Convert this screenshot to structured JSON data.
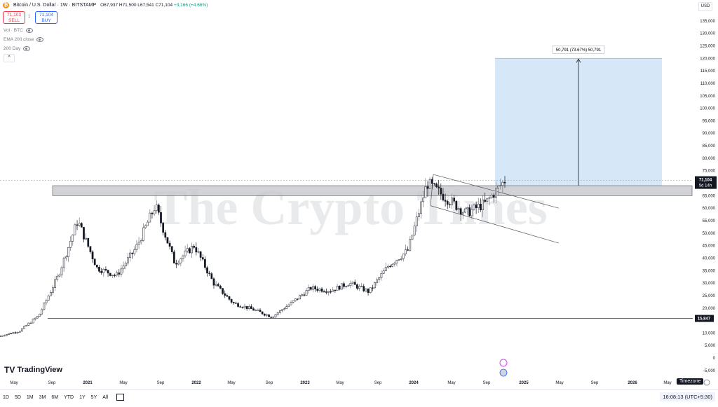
{
  "header": {
    "title": "Bitcoin / U.S. Dollar · 1W · BITSTAMP",
    "open": "O67,937",
    "high": "H71,500",
    "low": "L67,541",
    "close": "C71,104",
    "change": "+3,166 (+4.66%)"
  },
  "trade": {
    "sell_price": "71,103",
    "sell_label": "SELL",
    "spread": "1",
    "buy_price": "71,104",
    "buy_label": "BUY"
  },
  "indicators": [
    "Vol · BTC",
    "EMA 200 close",
    "200 Day"
  ],
  "currency": "USD",
  "price_axis": [
    "135,000",
    "130,000",
    "125,000",
    "120,000",
    "115,000",
    "110,000",
    "105,000",
    "100,000",
    "95,000",
    "90,000",
    "85,000",
    "80,000",
    "75,000",
    "70,000",
    "65,000",
    "60,000",
    "55,000",
    "50,000",
    "45,000",
    "40,000",
    "35,000",
    "30,000",
    "25,000",
    "20,000",
    "15,000",
    "10,000",
    "5,000",
    "0",
    "-5,000"
  ],
  "time_axis": [
    "May",
    "Sep",
    "2021",
    "May",
    "Sep",
    "2022",
    "May",
    "Sep",
    "2023",
    "May",
    "Sep",
    "2024",
    "May",
    "Sep",
    "2025",
    "May",
    "Sep",
    "2026",
    "May"
  ],
  "price_tag": {
    "value": "71,104",
    "countdown": "5d 14h"
  },
  "support_tag": "15,847",
  "measure_label": "50,791 (73.67%) 50,791",
  "watermark": "The Crypto Times",
  "logo": "TradingView",
  "timeframes": [
    "1D",
    "5D",
    "1M",
    "3M",
    "6M",
    "YTD",
    "1Y",
    "5Y",
    "All"
  ],
  "clock": "16:08:13 (UTC+5:30)",
  "timezone_tooltip": "Timezone",
  "colors": {
    "up": "#089981",
    "down": "#131722",
    "zone": "#c8c9cd",
    "target": "#cfe3f7",
    "accent": "#2962ff"
  },
  "chart_data": {
    "type": "candlestick",
    "series": [
      {
        "name": "BTC/USD weekly",
        "x": [
          "2020-05",
          "2020-09",
          "2020-11",
          "2021-01",
          "2021-03",
          "2021-05",
          "2021-07",
          "2021-09",
          "2021-11",
          "2022-01",
          "2022-03",
          "2022-05",
          "2022-07",
          "2022-09",
          "2022-11",
          "2023-01",
          "2023-03",
          "2023-05",
          "2023-07",
          "2023-09",
          "2023-11",
          "2024-01",
          "2024-03",
          "2024-05",
          "2024-07",
          "2024-09",
          "2024-10"
        ],
        "y": [
          8800,
          10800,
          17000,
          33000,
          55000,
          36000,
          33000,
          44000,
          61000,
          38000,
          45000,
          30000,
          22000,
          19500,
          16500,
          22000,
          28000,
          27000,
          30000,
          26500,
          37000,
          43000,
          70000,
          64000,
          58000,
          62000,
          71104
        ]
      }
    ],
    "resistance_zone": [
      65000,
      69000
    ],
    "support_level": 15847,
    "target": 120000,
    "ylim": [
      -7000,
      140000
    ]
  }
}
